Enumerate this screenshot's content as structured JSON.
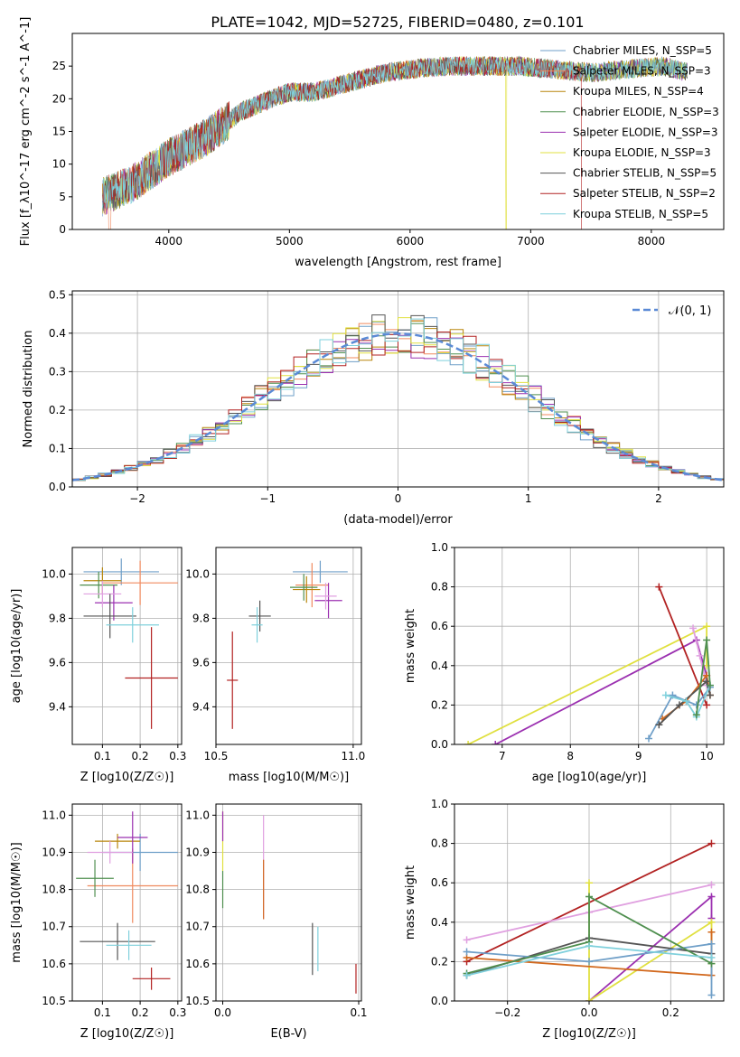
{
  "figure_title": "PLATE=1042, MJD=52725, FIBERID=0480, z=0.101",
  "colors": {
    "chabrier_miles": "#6f9fc8",
    "salpeter_miles": "#f08a5e",
    "kroupa_miles": "#b8860b",
    "chabrier_elodie": "#4f8f4f",
    "salpeter_elodie": "#9b30b0",
    "kroupa_elodie": "#e0e040",
    "chabrier_stelib": "#555555",
    "salpeter_stelib": "#b22222",
    "kroupa_stelib": "#7fd0dc",
    "gauss": "#5b8ad6"
  },
  "chart_data": [
    {
      "id": "spectrum",
      "type": "line",
      "xlabel": "wavelength [Angstrom, rest frame]",
      "ylabel": "Flux [f_λ10^-17 erg cm^-2 s^-1 A^-1]",
      "xlim": [
        3200,
        8600
      ],
      "ylim": [
        0,
        30
      ],
      "xticks": [
        4000,
        5000,
        6000,
        7000,
        8000
      ],
      "yticks": [
        0,
        5,
        10,
        15,
        20,
        25
      ],
      "grid": false,
      "legend_position": "right",
      "continuum": {
        "x": [
          3450,
          3700,
          3850,
          4000,
          4300,
          4600,
          4850,
          5000,
          5200,
          5400,
          5600,
          5800,
          6000,
          6300,
          6600,
          6900,
          7200,
          7500,
          7800,
          8100,
          8300
        ],
        "y": [
          5,
          7,
          9,
          11,
          14,
          18,
          20,
          21,
          21,
          22,
          23,
          24,
          24.5,
          25,
          25,
          25,
          24.5,
          24,
          24.5,
          25,
          24
        ]
      },
      "legend": [
        {
          "label": "Chabrier MILES, N_SSP=5",
          "color": "#6f9fc8"
        },
        {
          "label": "Salpeter MILES, N_SSP=3",
          "color": "#f08a5e"
        },
        {
          "label": "Kroupa MILES, N_SSP=4",
          "color": "#b8860b"
        },
        {
          "label": "Chabrier ELODIE, N_SSP=3",
          "color": "#4f8f4f"
        },
        {
          "label": "Salpeter ELODIE, N_SSP=3",
          "color": "#9b30b0"
        },
        {
          "label": "Kroupa ELODIE, N_SSP=3",
          "color": "#e0e040"
        },
        {
          "label": "Chabrier STELIB, N_SSP=5",
          "color": "#555555"
        },
        {
          "label": "Salpeter STELIB, N_SSP=2",
          "color": "#b22222"
        },
        {
          "label": "Kroupa STELIB, N_SSP=5",
          "color": "#7fd0dc"
        }
      ]
    },
    {
      "id": "residuals",
      "type": "line",
      "xlabel": "(data-model)/error",
      "ylabel": "Normed distribution",
      "xlim": [
        -2.5,
        2.5
      ],
      "ylim": [
        0,
        0.51
      ],
      "xticks": [
        -2,
        -1,
        0,
        1,
        2
      ],
      "yticks": [
        0.0,
        0.1,
        0.2,
        0.3,
        0.4,
        0.5
      ],
      "grid": true,
      "legend_position": "upper right",
      "legend": [
        {
          "label": "𝒩(0, 1)",
          "color": "#5b8ad6"
        }
      ],
      "bin_width": 0.1
    },
    {
      "id": "age_Z",
      "type": "scatter",
      "xlabel": "Z [log10(Z/Z☉)]",
      "ylabel": "age [log10(age/yr)]",
      "xlim": [
        0.02,
        0.31
      ],
      "ylim": [
        9.23,
        10.12
      ],
      "xticks": [
        0.1,
        0.2,
        0.3
      ],
      "yticks": [
        9.4,
        9.6,
        9.8,
        10.0
      ],
      "grid": true,
      "points": [
        {
          "x": 0.15,
          "y": 10.01,
          "xerr": 0.1,
          "yerr": 0.06,
          "color": "#6f9fc8"
        },
        {
          "x": 0.2,
          "y": 9.96,
          "xerr": 0.1,
          "yerr": 0.1,
          "color": "#f08a5e"
        },
        {
          "x": 0.1,
          "y": 9.97,
          "xerr": 0.05,
          "yerr": 0.06,
          "color": "#b8860b"
        },
        {
          "x": 0.09,
          "y": 9.95,
          "xerr": 0.05,
          "yerr": 0.06,
          "color": "#4f8f4f"
        },
        {
          "x": 0.13,
          "y": 9.87,
          "xerr": 0.05,
          "yerr": 0.08,
          "color": "#9b30b0"
        },
        {
          "x": 0.1,
          "y": 9.91,
          "xerr": 0.05,
          "yerr": 0.06,
          "color": "#e0a0e0"
        },
        {
          "x": 0.12,
          "y": 9.81,
          "xerr": 0.07,
          "yerr": 0.1,
          "color": "#555555"
        },
        {
          "x": 0.23,
          "y": 9.53,
          "xerr": 0.07,
          "yerr": 0.23,
          "color": "#b22222"
        },
        {
          "x": 0.18,
          "y": 9.77,
          "xerr": 0.07,
          "yerr": 0.08,
          "color": "#7fd0dc"
        }
      ]
    },
    {
      "id": "age_mass",
      "type": "scatter",
      "xlabel": "mass [log10(M/M☉)]",
      "ylabel": "",
      "xlim": [
        10.5,
        11.03
      ],
      "ylim": [
        9.23,
        10.12
      ],
      "xticks": [
        10.5,
        11.0
      ],
      "yticks": [
        9.4,
        9.6,
        9.8,
        10.0
      ],
      "grid": true,
      "points": [
        {
          "x": 10.88,
          "y": 10.01,
          "xerr": 0.1,
          "yerr": 0.05,
          "color": "#6f9fc8"
        },
        {
          "x": 10.85,
          "y": 9.95,
          "xerr": 0.06,
          "yerr": 0.1,
          "color": "#f08a5e"
        },
        {
          "x": 10.83,
          "y": 9.93,
          "xerr": 0.05,
          "yerr": 0.06,
          "color": "#b8860b"
        },
        {
          "x": 10.82,
          "y": 9.94,
          "xerr": 0.05,
          "yerr": 0.06,
          "color": "#4f8f4f"
        },
        {
          "x": 10.91,
          "y": 9.88,
          "xerr": 0.05,
          "yerr": 0.08,
          "color": "#9b30b0"
        },
        {
          "x": 10.9,
          "y": 9.9,
          "xerr": 0.04,
          "yerr": 0.06,
          "color": "#e0a0e0"
        },
        {
          "x": 10.66,
          "y": 9.81,
          "xerr": 0.04,
          "yerr": 0.07,
          "color": "#555555"
        },
        {
          "x": 10.56,
          "y": 9.52,
          "xerr": 0.02,
          "yerr": 0.22,
          "color": "#b22222"
        },
        {
          "x": 10.65,
          "y": 9.77,
          "xerr": 0.02,
          "yerr": 0.08,
          "color": "#7fd0dc"
        }
      ]
    },
    {
      "id": "weight_age",
      "type": "line",
      "xlabel": "age [log10(age/yr)]",
      "ylabel": "mass weight",
      "xlim": [
        6.3,
        10.25
      ],
      "ylim": [
        0,
        1
      ],
      "xticks": [
        7,
        8,
        9,
        10
      ],
      "yticks": [
        0.0,
        0.2,
        0.4,
        0.6,
        0.8,
        1.0
      ],
      "grid": true,
      "series": [
        {
          "color": "#e0e040",
          "x": [
            6.5,
            10.0,
            10.0
          ],
          "y": [
            0.0,
            0.6,
            0.4
          ]
        },
        {
          "color": "#9b30b0",
          "x": [
            6.9,
            9.85,
            10.0
          ],
          "y": [
            0.0,
            0.53,
            0.35
          ]
        },
        {
          "color": "#b22222",
          "x": [
            9.3,
            10.0
          ],
          "y": [
            0.8,
            0.2
          ]
        },
        {
          "color": "#e0a0e0",
          "x": [
            9.8,
            9.9,
            10.0
          ],
          "y": [
            0.59,
            0.45,
            0.3
          ]
        },
        {
          "color": "#d2691e",
          "x": [
            9.35,
            9.7,
            10.0,
            10.05
          ],
          "y": [
            0.13,
            0.22,
            0.35,
            0.25
          ]
        },
        {
          "color": "#6f9fc8",
          "x": [
            9.15,
            9.5,
            9.85,
            10.05
          ],
          "y": [
            0.03,
            0.25,
            0.2,
            0.29
          ]
        },
        {
          "color": "#555555",
          "x": [
            9.3,
            9.6,
            10.0,
            10.05
          ],
          "y": [
            0.1,
            0.2,
            0.32,
            0.25
          ]
        },
        {
          "color": "#7fd0dc",
          "x": [
            9.4,
            9.7,
            9.85,
            10.05
          ],
          "y": [
            0.25,
            0.22,
            0.14,
            0.3
          ]
        },
        {
          "color": "#4f8f4f",
          "x": [
            9.85,
            10.0,
            10.05
          ],
          "y": [
            0.15,
            0.53,
            0.3
          ]
        }
      ]
    },
    {
      "id": "mass_Z",
      "type": "scatter",
      "xlabel": "Z [log10(Z/Z☉)]",
      "ylabel": "mass [log10(M/M☉)]",
      "xlim": [
        0.02,
        0.31
      ],
      "ylim": [
        10.5,
        11.03
      ],
      "xticks": [
        0.1,
        0.2,
        0.3
      ],
      "yticks": [
        10.5,
        10.6,
        10.7,
        10.8,
        10.9,
        11.0
      ],
      "grid": true,
      "points": [
        {
          "x": 0.2,
          "y": 10.9,
          "xerr": 0.1,
          "yerr": 0.05,
          "color": "#6f9fc8"
        },
        {
          "x": 0.18,
          "y": 10.81,
          "xerr": 0.12,
          "yerr": 0.1,
          "color": "#f08a5e"
        },
        {
          "x": 0.14,
          "y": 10.93,
          "xerr": 0.06,
          "yerr": 0.02,
          "color": "#b8860b"
        },
        {
          "x": 0.08,
          "y": 10.83,
          "xerr": 0.05,
          "yerr": 0.05,
          "color": "#4f8f4f"
        },
        {
          "x": 0.18,
          "y": 10.94,
          "xerr": 0.04,
          "yerr": 0.07,
          "color": "#9b30b0"
        },
        {
          "x": 0.12,
          "y": 10.9,
          "xerr": 0.06,
          "yerr": 0.03,
          "color": "#e0a0e0"
        },
        {
          "x": 0.14,
          "y": 10.66,
          "xerr": 0.1,
          "yerr": 0.05,
          "color": "#555555"
        },
        {
          "x": 0.23,
          "y": 10.56,
          "xerr": 0.05,
          "yerr": 0.03,
          "color": "#b22222"
        },
        {
          "x": 0.17,
          "y": 10.65,
          "xerr": 0.06,
          "yerr": 0.04,
          "color": "#7fd0dc"
        }
      ]
    },
    {
      "id": "mass_ebv",
      "type": "scatter",
      "xlabel": "E(B-V)",
      "ylabel": "",
      "xlim": [
        -0.005,
        0.102
      ],
      "ylim": [
        10.5,
        11.03
      ],
      "xticks": [
        0.0,
        0.1
      ],
      "yticks": [
        10.5,
        10.6,
        10.7,
        10.8,
        10.9,
        11.0
      ],
      "grid": true,
      "points": [
        {
          "x": 0.0,
          "y": 10.93,
          "yerr": 0.08,
          "color": "#e0e040"
        },
        {
          "x": 0.0,
          "y": 10.97,
          "yerr": 0.04,
          "color": "#9b30b0"
        },
        {
          "x": 0.0,
          "y": 10.8,
          "yerr": 0.05,
          "color": "#4f8f4f"
        },
        {
          "x": 0.03,
          "y": 10.86,
          "yerr": 0.14,
          "color": "#e0a0e0"
        },
        {
          "x": 0.03,
          "y": 10.8,
          "yerr": 0.08,
          "color": "#d2691e"
        },
        {
          "x": 0.066,
          "y": 10.64,
          "yerr": 0.07,
          "color": "#555555"
        },
        {
          "x": 0.07,
          "y": 10.64,
          "yerr": 0.06,
          "color": "#7fd0dc"
        },
        {
          "x": 0.098,
          "y": 10.56,
          "yerr": 0.04,
          "color": "#b22222"
        }
      ]
    },
    {
      "id": "weight_Z",
      "type": "line",
      "xlabel": "Z [log10(Z/Z☉)]",
      "ylabel": "mass weight",
      "xlim": [
        -0.33,
        0.33
      ],
      "ylim": [
        0,
        1
      ],
      "xticks": [
        -0.2,
        0.0,
        0.2
      ],
      "yticks": [
        0.0,
        0.2,
        0.4,
        0.6,
        0.8,
        1.0
      ],
      "grid": true,
      "series": [
        {
          "color": "#b22222",
          "x": [
            -0.3,
            0.3
          ],
          "y": [
            0.2,
            0.8
          ]
        },
        {
          "color": "#e0a0e0",
          "x": [
            -0.3,
            0.0,
            0.3
          ],
          "y": [
            0.31,
            0.45,
            0.59
          ]
        },
        {
          "color": "#9b30b0",
          "x": [
            0.0,
            0.3,
            0.3
          ],
          "y": [
            0.0,
            0.53,
            0.42
          ]
        },
        {
          "color": "#e0e040",
          "x": [
            0.0,
            0.0,
            0.3,
            0.3
          ],
          "y": [
            0.6,
            0.0,
            0.4,
            0.19
          ]
        },
        {
          "color": "#555555",
          "x": [
            -0.3,
            0.0,
            0.3
          ],
          "y": [
            0.13,
            0.32,
            0.24
          ]
        },
        {
          "color": "#d2691e",
          "x": [
            -0.3,
            0.3,
            0.3
          ],
          "y": [
            0.22,
            0.13,
            0.35
          ]
        },
        {
          "color": "#6f9fc8",
          "x": [
            -0.3,
            0.0,
            0.3,
            0.3
          ],
          "y": [
            0.25,
            0.2,
            0.29,
            0.03
          ]
        },
        {
          "color": "#4f8f4f",
          "x": [
            -0.3,
            0.0,
            0.0,
            0.3
          ],
          "y": [
            0.14,
            0.3,
            0.53,
            0.19
          ]
        },
        {
          "color": "#7fd0dc",
          "x": [
            -0.3,
            0.0,
            0.3
          ],
          "y": [
            0.13,
            0.28,
            0.22
          ]
        }
      ]
    }
  ]
}
